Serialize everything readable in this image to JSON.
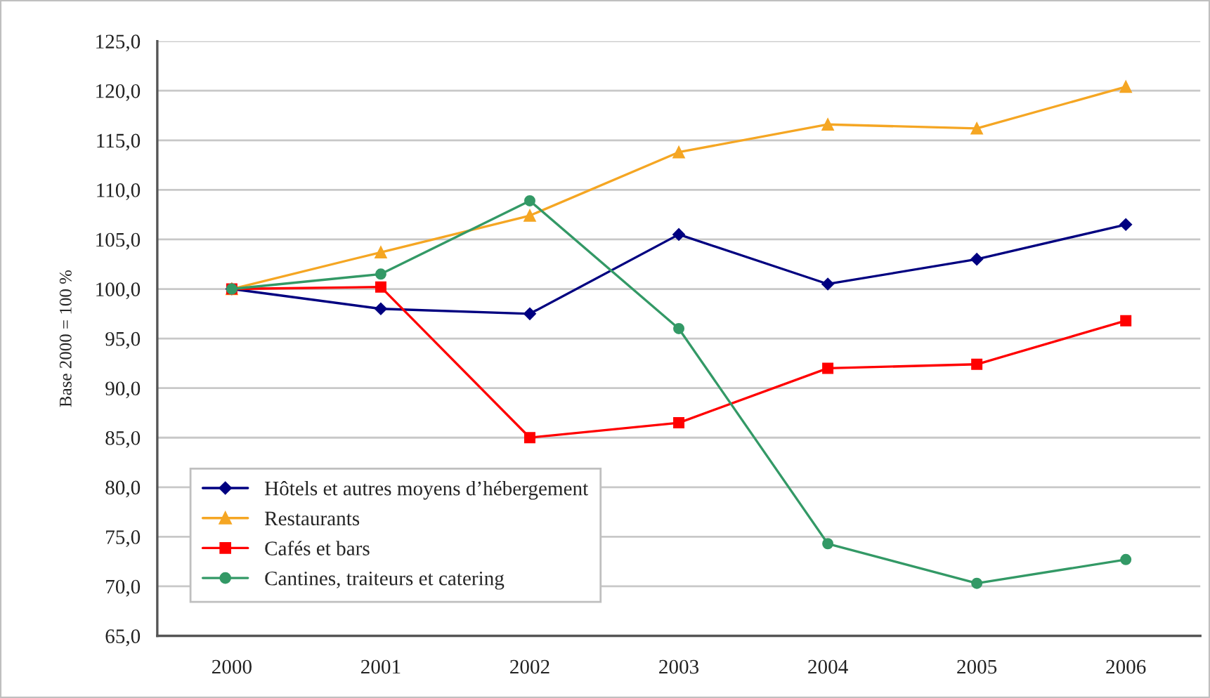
{
  "chart_data": {
    "type": "line",
    "ylabel": "Base 2000 = 100 %",
    "categories": [
      "2000",
      "2001",
      "2002",
      "2003",
      "2004",
      "2005",
      "2006"
    ],
    "series": [
      {
        "name": "Hôtels et autres moyens d’hébergement",
        "color": "#000080",
        "marker": "diamond",
        "values": [
          100.0,
          98.0,
          97.5,
          105.5,
          100.5,
          103.0,
          106.5
        ]
      },
      {
        "name": "Restaurants",
        "color": "#f5a623",
        "marker": "triangle",
        "values": [
          100.0,
          103.7,
          107.4,
          113.8,
          116.6,
          116.2,
          120.4
        ]
      },
      {
        "name": "Cafés et bars",
        "color": "#ff0000",
        "marker": "square",
        "values": [
          100.0,
          100.2,
          85.0,
          86.5,
          92.0,
          92.4,
          96.8
        ]
      },
      {
        "name": "Cantines, traiteurs et catering",
        "color": "#339966",
        "marker": "circle",
        "values": [
          100.0,
          101.5,
          108.9,
          96.0,
          74.3,
          70.3,
          72.7
        ]
      }
    ],
    "ylim": [
      65,
      125
    ],
    "yticks": [
      {
        "value": 65,
        "label": "65,0"
      },
      {
        "value": 70,
        "label": "70,0"
      },
      {
        "value": 75,
        "label": "75,0"
      },
      {
        "value": 80,
        "label": "80,0"
      },
      {
        "value": 85,
        "label": "85,0"
      },
      {
        "value": 90,
        "label": "90,0"
      },
      {
        "value": 95,
        "label": "95,0"
      },
      {
        "value": 100,
        "label": "100,0"
      },
      {
        "value": 105,
        "label": "105,0"
      },
      {
        "value": 110,
        "label": "110,0"
      },
      {
        "value": 115,
        "label": "115,0"
      },
      {
        "value": 120,
        "label": "120,0"
      },
      {
        "value": 125,
        "label": "125,0"
      }
    ],
    "grid": "y",
    "legend": "bottom left",
    "line_style": "solid"
  }
}
